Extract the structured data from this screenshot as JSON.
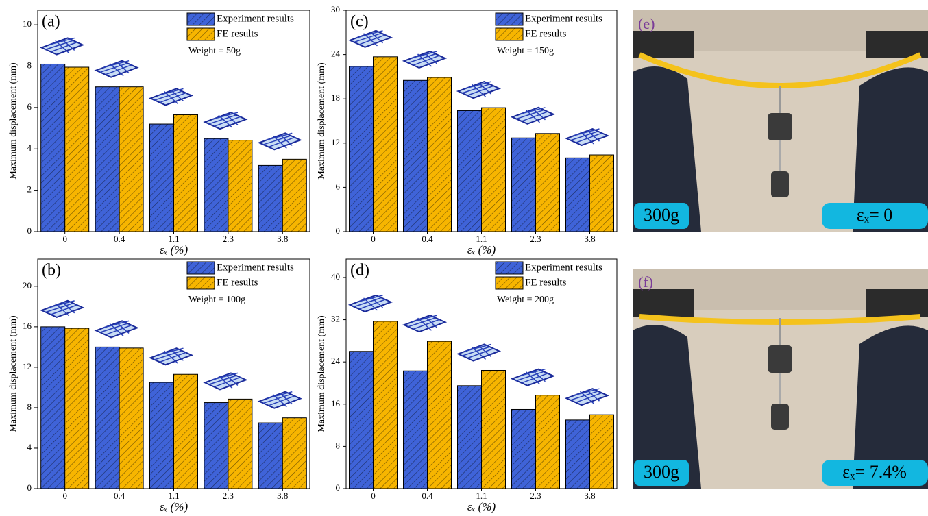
{
  "chart_data": [
    {
      "type": "bar",
      "panel_label": "(a)",
      "ylabel": "Maximum displacement (mm)",
      "xlabel": "εₓ (%)",
      "annotation": "Weight = 50g",
      "categories": [
        "0",
        "0.4",
        "1.1",
        "2.3",
        "3.8"
      ],
      "series": [
        {
          "name": "Experiment results",
          "color": "#3f63d8",
          "values": [
            8.1,
            7.0,
            5.2,
            4.5,
            3.2
          ]
        },
        {
          "name": "FE results",
          "color": "#f7b500",
          "values": [
            7.95,
            7.0,
            5.65,
            4.42,
            3.5
          ]
        }
      ],
      "ylim": [
        0,
        10.7
      ],
      "yticks": [
        0,
        2,
        4,
        6,
        8,
        10
      ]
    },
    {
      "type": "bar",
      "panel_label": "(c)",
      "ylabel": "Maximum displacement (mm)",
      "xlabel": "εₓ (%)",
      "annotation": "Weight = 150g",
      "categories": [
        "0",
        "0.4",
        "1.1",
        "2.3",
        "3.8"
      ],
      "series": [
        {
          "name": "Experiment results",
          "color": "#3f63d8",
          "values": [
            22.4,
            20.5,
            16.4,
            12.7,
            10.0
          ]
        },
        {
          "name": "FE results",
          "color": "#f7b500",
          "values": [
            23.7,
            20.9,
            16.8,
            13.3,
            10.4
          ]
        }
      ],
      "ylim": [
        0,
        30
      ],
      "yticks": [
        0,
        6,
        12,
        18,
        24,
        30
      ]
    },
    {
      "type": "bar",
      "panel_label": "(b)",
      "ylabel": "Maximum displacement (mm)",
      "xlabel": "εₓ (%)",
      "annotation": "Weight = 100g",
      "categories": [
        "0",
        "0.4",
        "1.1",
        "2.3",
        "3.8"
      ],
      "series": [
        {
          "name": "Experiment results",
          "color": "#3f63d8",
          "values": [
            16.0,
            14.0,
            10.5,
            8.5,
            6.5
          ]
        },
        {
          "name": "FE results",
          "color": "#f7b500",
          "values": [
            15.85,
            13.9,
            11.3,
            8.85,
            7.0
          ]
        }
      ],
      "ylim": [
        0,
        22.7
      ],
      "yticks": [
        0,
        4,
        8,
        12,
        16,
        20
      ]
    },
    {
      "type": "bar",
      "panel_label": "(d)",
      "ylabel": "Maximum displacement (mm)",
      "xlabel": "εₓ (%)",
      "annotation": "Weight = 200g",
      "categories": [
        "0",
        "0.4",
        "1.1",
        "2.3",
        "3.8"
      ],
      "series": [
        {
          "name": "Experiment results",
          "color": "#3f63d8",
          "values": [
            26.0,
            22.3,
            19.5,
            15.0,
            13.0
          ]
        },
        {
          "name": "FE results",
          "color": "#f7b500",
          "values": [
            31.7,
            27.9,
            22.4,
            17.7,
            14.0
          ]
        }
      ],
      "ylim": [
        0,
        43.5
      ],
      "yticks": [
        0,
        8,
        16,
        24,
        32,
        40
      ]
    }
  ],
  "photos": [
    {
      "panel_label": "(e)",
      "weight": "300g",
      "strain": "εₓ= 0"
    },
    {
      "panel_label": "(f)",
      "weight": "300g",
      "strain": "εₓ= 7.4%"
    }
  ]
}
